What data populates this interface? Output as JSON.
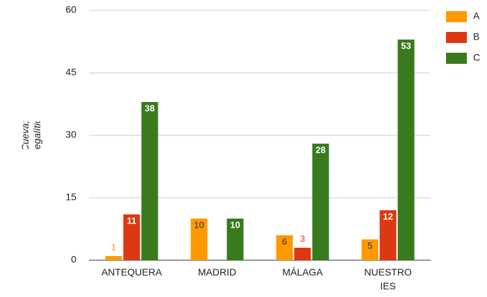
{
  "chart_data": {
    "type": "bar",
    "ylabel": "A= Culto; B=Cueva; C= Sepulcro megalítico",
    "categories": [
      "ANTEQUERA",
      "MADRID",
      "MÁLAGA",
      "NUESTRO IES"
    ],
    "series": [
      {
        "name": "A",
        "color": "#ff9900",
        "values": [
          1,
          10,
          6,
          5
        ]
      },
      {
        "name": "B",
        "color": "#dc3912",
        "values": [
          11,
          null,
          3,
          12
        ]
      },
      {
        "name": "C",
        "color": "#3a7a1e",
        "values": [
          38,
          10,
          28,
          53
        ]
      }
    ],
    "ylim": [
      0,
      60
    ],
    "yticks": [
      0,
      15,
      30,
      45,
      60
    ],
    "grid": true,
    "legend": "right"
  }
}
